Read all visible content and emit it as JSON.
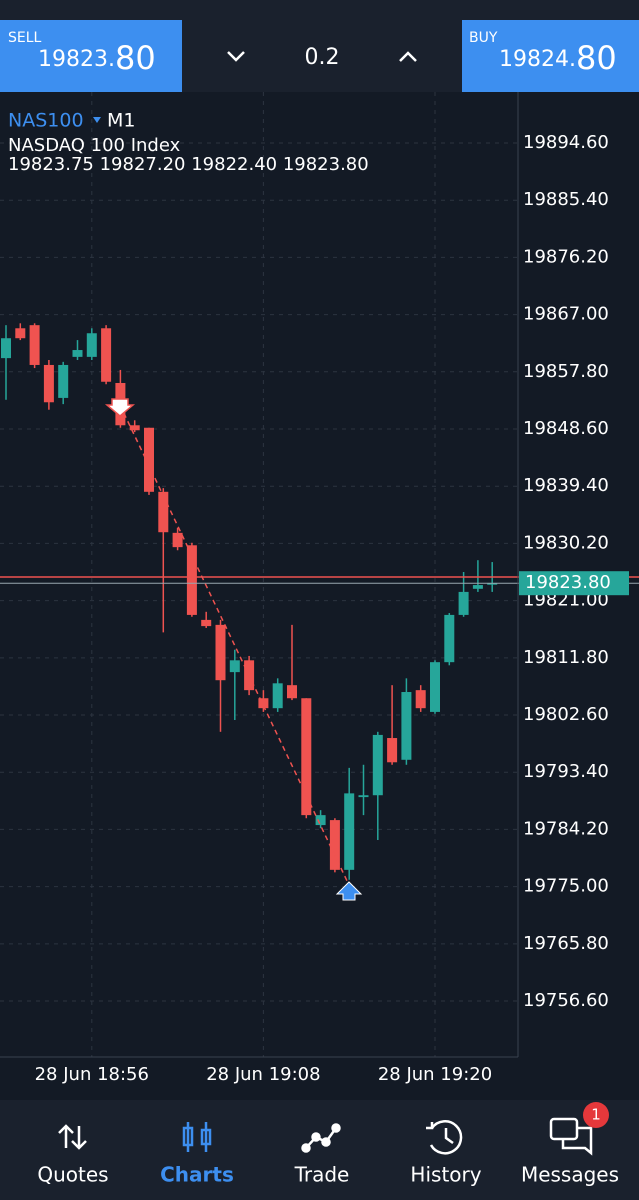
{
  "header": {
    "sell": {
      "label": "SELL",
      "price_main": "19823.",
      "price_pips": "80"
    },
    "lot": "0.2",
    "buy": {
      "label": "BUY",
      "price_main": "19824.",
      "price_pips": "80"
    }
  },
  "chart_data": {
    "type": "candlestick",
    "symbol": "NAS100",
    "timeframe": "M1",
    "description": "NASDAQ 100 Index",
    "ohlc_text": "19823.75 19827.20 19822.40 19823.80",
    "categories": [
      null,
      null,
      null,
      null,
      null,
      null,
      "28 Jun 18:56",
      null,
      null,
      null,
      null,
      null,
      null,
      null,
      null,
      null,
      null,
      null,
      "28 Jun 19:08",
      null,
      null,
      null,
      null,
      null,
      null,
      null,
      null,
      null,
      null,
      null,
      "28 Jun 19:20",
      null,
      null,
      null,
      null
    ],
    "open": [
      19860.0,
      19864.8,
      19865.3,
      19858.9,
      19853.6,
      19860.2,
      19860.2,
      19864.8,
      19856.0,
      19849.2,
      19848.8,
      19838.5,
      19831.9,
      19829.9,
      19817.9,
      19817.1,
      19809.5,
      19811.4,
      19805.3,
      19803.7,
      19807.4,
      19805.3,
      19784.9,
      19785.7,
      19777.7,
      19789.4,
      19789.7,
      19798.9,
      19795.4,
      19806.6,
      19803.1,
      19811.1,
      19818.7,
      19822.9,
      19823.75
    ],
    "high": [
      19865.3,
      19865.6,
      19865.6,
      19859.7,
      19859.4,
      19862.9,
      19864.8,
      19865.3,
      19858.1,
      19850.0,
      19848.8,
      19839.1,
      19832.7,
      19830.3,
      19819.2,
      19817.9,
      19813.1,
      19812.1,
      19806.6,
      19808.5,
      19817.1,
      19805.3,
      19787.3,
      19786.0,
      19794.1,
      19794.6,
      19799.9,
      19807.4,
      19808.5,
      19807.4,
      19811.4,
      19819.0,
      19825.6,
      19827.5,
      19827.2
    ],
    "low": [
      19853.3,
      19862.9,
      19858.4,
      19851.7,
      19852.6,
      19859.7,
      19859.7,
      19855.8,
      19848.8,
      19848.1,
      19838.0,
      19815.9,
      19829.1,
      19818.4,
      19816.6,
      19799.9,
      19801.8,
      19805.8,
      19803.1,
      19803.1,
      19805.0,
      19786.0,
      19784.4,
      19777.3,
      19776.1,
      19786.5,
      19782.5,
      19794.6,
      19794.6,
      19803.1,
      19802.8,
      19810.6,
      19818.4,
      19822.4,
      19822.4
    ],
    "close": [
      19863.2,
      19863.2,
      19858.9,
      19852.9,
      19858.9,
      19861.3,
      19864.0,
      19856.2,
      19849.2,
      19848.4,
      19838.5,
      19832.0,
      19829.6,
      19818.7,
      19816.9,
      19808.2,
      19811.4,
      19806.6,
      19803.7,
      19807.7,
      19805.3,
      19786.5,
      19786.5,
      19777.7,
      19790.0,
      19789.7,
      19799.4,
      19795.0,
      19806.3,
      19803.7,
      19811.1,
      19818.7,
      19822.4,
      19823.5,
      19823.8
    ],
    "up_color": "#26a69a",
    "down_color": "#ef5350",
    "ylim": [
      19747.6,
      19902.8
    ],
    "yticks": [
      {
        "value": 19894.6,
        "label": "19894.60"
      },
      {
        "value": 19885.4,
        "label": "19885.40"
      },
      {
        "value": 19876.2,
        "label": "19876.20"
      },
      {
        "value": 19867,
        "label": "19867.00"
      },
      {
        "value": 19857.8,
        "label": "19857.80"
      },
      {
        "value": 19848.6,
        "label": "19848.60"
      },
      {
        "value": 19839.4,
        "label": "19839.40"
      },
      {
        "value": 19830.2,
        "label": "19830.20"
      },
      {
        "value": 19821,
        "label": "19821.00"
      },
      {
        "value": 19811.8,
        "label": "19811.80"
      },
      {
        "value": 19802.6,
        "label": "19802.60"
      },
      {
        "value": 19793.4,
        "label": "19793.40"
      },
      {
        "value": 19784.2,
        "label": "19784.20"
      },
      {
        "value": 19775,
        "label": "19775.00"
      },
      {
        "value": 19765.8,
        "label": "19765.80"
      },
      {
        "value": 19756.6,
        "label": "19756.60"
      }
    ],
    "grid": true,
    "price_line": {
      "value": 19823.8,
      "label": "19823.80",
      "color": "#26a69a"
    },
    "ask_line": {
      "value": 19824.8,
      "color": "#ef5350"
    }
  },
  "nav": {
    "items": [
      "Quotes",
      "Charts",
      "Trade",
      "History",
      "Messages"
    ],
    "active": 1,
    "badge": "1"
  }
}
